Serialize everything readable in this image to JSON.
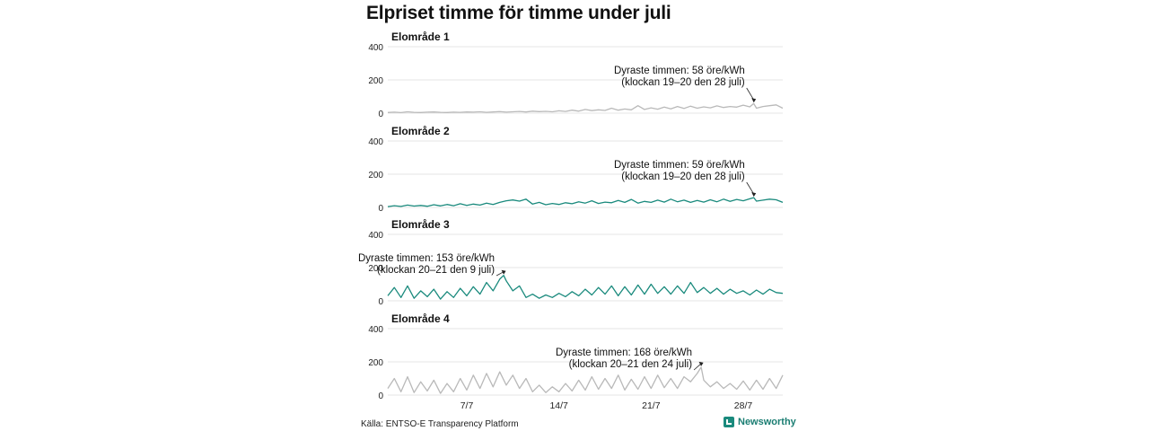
{
  "title": "Elpriset timme för timme under juli",
  "source": "Källa: ENTSO-E Transparency Platform",
  "brand": "Newsworthy",
  "colors": {
    "teal": "#1a8a7d",
    "gray": "#b9b9b9",
    "grid": "#e6e6e6",
    "brand": "#1a7d72"
  },
  "icons": {
    "logo": "newsworthy-logo-icon"
  },
  "chart_data": {
    "type": "line",
    "x_unit": "dag i juli",
    "x_range": [
      1,
      31
    ],
    "x_ticks": [
      {
        "day": 7,
        "label": "7/7"
      },
      {
        "day": 14,
        "label": "14/7"
      },
      {
        "day": 21,
        "label": "21/7"
      },
      {
        "day": 28,
        "label": "28/7"
      }
    ],
    "ylim": [
      0,
      400
    ],
    "y_ticks": [
      0,
      200,
      400
    ],
    "grid": true,
    "panels": [
      {
        "name": "Elområde 1",
        "color": "gray",
        "annotation": {
          "line1": "Dyraste timmen: 58 öre/kWh",
          "line2": "(klockan 19–20 den 28 juli)",
          "x": 28.8,
          "y": 58
        },
        "x": [
          1,
          1.5,
          2,
          2.5,
          3,
          3.5,
          4,
          4.5,
          5,
          5.5,
          6,
          6.5,
          7,
          7.5,
          8,
          8.5,
          9,
          9.5,
          10,
          10.5,
          11,
          11.5,
          12,
          12.5,
          13,
          13.5,
          14,
          14.5,
          15,
          15.5,
          16,
          16.5,
          17,
          17.5,
          18,
          18.5,
          19,
          19.5,
          20,
          20.5,
          21,
          21.5,
          22,
          22.5,
          23,
          23.5,
          24,
          24.5,
          25,
          25.5,
          26,
          26.5,
          27,
          27.5,
          28,
          28.5,
          28.8,
          29,
          29.5,
          30,
          30.5,
          31
        ],
        "values": [
          4,
          6,
          3,
          8,
          5,
          4,
          6,
          7,
          5,
          4,
          6,
          5,
          7,
          6,
          8,
          5,
          7,
          9,
          6,
          8,
          10,
          7,
          12,
          9,
          11,
          8,
          14,
          10,
          18,
          12,
          22,
          15,
          20,
          16,
          30,
          18,
          25,
          20,
          45,
          22,
          32,
          24,
          36,
          26,
          40,
          28,
          42,
          30,
          38,
          32,
          44,
          34,
          40,
          36,
          48,
          38,
          58,
          30,
          40,
          45,
          50,
          30
        ]
      },
      {
        "name": "Elområde 2",
        "color": "teal",
        "annotation": {
          "line1": "Dyraste timmen: 59 öre/kWh",
          "line2": "(klockan 19–20 den 28 juli)",
          "x": 28.8,
          "y": 59
        },
        "x": [
          1,
          1.5,
          2,
          2.5,
          3,
          3.5,
          4,
          4.5,
          5,
          5.5,
          6,
          6.5,
          7,
          7.5,
          8,
          8.5,
          9,
          9.5,
          10,
          10.5,
          11,
          11.5,
          12,
          12.5,
          13,
          13.5,
          14,
          14.5,
          15,
          15.5,
          16,
          16.5,
          17,
          17.5,
          18,
          18.5,
          19,
          19.5,
          20,
          20.5,
          21,
          21.5,
          22,
          22.5,
          23,
          23.5,
          24,
          24.5,
          25,
          25.5,
          26,
          26.5,
          27,
          27.5,
          28,
          28.5,
          28.8,
          29,
          29.5,
          30,
          30.5,
          31
        ],
        "values": [
          5,
          10,
          6,
          14,
          8,
          12,
          7,
          16,
          9,
          18,
          10,
          22,
          12,
          20,
          14,
          26,
          18,
          30,
          40,
          45,
          38,
          50,
          20,
          30,
          16,
          24,
          18,
          28,
          22,
          34,
          26,
          40,
          24,
          32,
          28,
          42,
          30,
          48,
          26,
          36,
          30,
          44,
          32,
          50,
          34,
          44,
          30,
          42,
          32,
          46,
          34,
          50,
          36,
          48,
          40,
          52,
          59,
          38,
          44,
          50,
          46,
          30
        ]
      },
      {
        "name": "Elområde 3",
        "color": "teal",
        "annotation": {
          "line1": "Dyraste timmen: 153 öre/kWh",
          "line2": "(klockan 20–21 den 9 juli)",
          "x": 9.8,
          "y": 153
        },
        "x": [
          1,
          1.5,
          2,
          2.5,
          3,
          3.5,
          4,
          4.5,
          5,
          5.5,
          6,
          6.5,
          7,
          7.5,
          8,
          8.5,
          9,
          9.5,
          9.8,
          10,
          10.5,
          11,
          11.5,
          12,
          12.5,
          13,
          13.5,
          14,
          14.5,
          15,
          15.5,
          16,
          16.5,
          17,
          17.5,
          18,
          18.5,
          19,
          19.5,
          20,
          20.5,
          21,
          21.5,
          22,
          22.5,
          23,
          23.5,
          24,
          24.5,
          25,
          25.5,
          26,
          26.5,
          27,
          27.5,
          28,
          28.5,
          29,
          29.5,
          30,
          30.5,
          31
        ],
        "values": [
          30,
          80,
          20,
          90,
          15,
          60,
          25,
          70,
          10,
          55,
          20,
          75,
          30,
          85,
          40,
          110,
          60,
          130,
          153,
          120,
          60,
          90,
          20,
          40,
          15,
          35,
          20,
          45,
          25,
          55,
          30,
          70,
          35,
          80,
          40,
          90,
          30,
          85,
          35,
          95,
          40,
          100,
          45,
          85,
          40,
          90,
          45,
          110,
          50,
          80,
          45,
          75,
          40,
          70,
          45,
          60,
          35,
          65,
          40,
          70,
          50,
          45
        ]
      },
      {
        "name": "Elområde 4",
        "color": "gray",
        "annotation": {
          "line1": "Dyraste timmen: 168 öre/kWh",
          "line2": "(klockan 20–21 den 24 juli)",
          "x": 24.8,
          "y": 168
        },
        "x": [
          1,
          1.5,
          2,
          2.5,
          3,
          3.5,
          4,
          4.5,
          5,
          5.5,
          6,
          6.5,
          7,
          7.5,
          8,
          8.5,
          9,
          9.5,
          10,
          10.5,
          11,
          11.5,
          12,
          12.5,
          13,
          13.5,
          14,
          14.5,
          15,
          15.5,
          16,
          16.5,
          17,
          17.5,
          18,
          18.5,
          19,
          19.5,
          20,
          20.5,
          21,
          21.5,
          22,
          22.5,
          23,
          23.5,
          24,
          24.5,
          24.8,
          25,
          25.5,
          26,
          26.5,
          27,
          27.5,
          28,
          28.5,
          29,
          29.5,
          30,
          30.5,
          31
        ],
        "values": [
          40,
          100,
          20,
          110,
          15,
          80,
          25,
          90,
          10,
          70,
          20,
          100,
          30,
          120,
          40,
          130,
          50,
          140,
          60,
          120,
          40,
          100,
          20,
          60,
          15,
          50,
          20,
          70,
          25,
          90,
          30,
          110,
          35,
          100,
          40,
          120,
          30,
          95,
          35,
          110,
          40,
          120,
          45,
          100,
          40,
          110,
          80,
          130,
          168,
          90,
          50,
          80,
          40,
          70,
          35,
          85,
          30,
          90,
          35,
          100,
          40,
          120
        ]
      }
    ]
  }
}
